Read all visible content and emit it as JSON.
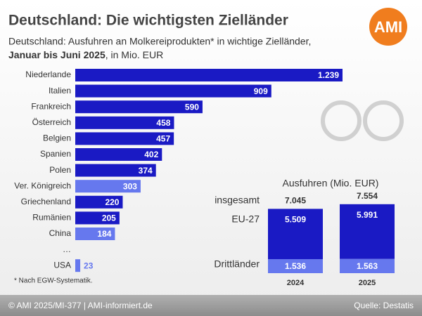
{
  "header": {
    "title": "Deutschland: Die wichtigsten Zielländer",
    "subtitle_line1": "Deutschland: Ausfuhren an Molkereiprodukten* in wichtige Zielländer,",
    "subtitle_bold": "Januar bis Juni 2025",
    "subtitle_rest": ", in Mio. EUR",
    "logo": "AMI"
  },
  "chart_data": [
    {
      "type": "bar",
      "orientation": "horizontal",
      "categories": [
        "Niederlande",
        "Italien",
        "Frankreich",
        "Österreich",
        "Belgien",
        "Spanien",
        "Polen",
        "Ver. Königreich",
        "Griechenland",
        "Rumänien",
        "China",
        "…",
        "USA"
      ],
      "values": [
        1239,
        909,
        590,
        458,
        457,
        402,
        374,
        303,
        220,
        205,
        184,
        null,
        23
      ],
      "value_labels": [
        "1.239",
        "909",
        "590",
        "458",
        "457",
        "402",
        "374",
        "303",
        "220",
        "205",
        "184",
        null,
        "23"
      ],
      "colors": [
        "#1a1ac4",
        "#1a1ac4",
        "#1a1ac4",
        "#1a1ac4",
        "#1a1ac4",
        "#1a1ac4",
        "#1a1ac4",
        "#6678ee",
        "#1a1ac4",
        "#1a1ac4",
        "#6678ee",
        null,
        "#6678ee"
      ]
    },
    {
      "type": "stacked_bar",
      "title": "Ausfuhren (Mio. EUR)",
      "categories": [
        "2024",
        "2025"
      ],
      "series": [
        {
          "name": "Drittländer",
          "color": "#6678ee",
          "values": [
            1536,
            1563
          ],
          "value_labels": [
            "1.536",
            "1.563"
          ]
        },
        {
          "name": "EU-27",
          "color": "#1a1ac4",
          "values": [
            5509,
            5991
          ],
          "value_labels": [
            "5.509",
            "5.991"
          ]
        }
      ],
      "totals": {
        "name": "insgesamt",
        "values": [
          7045,
          7554
        ],
        "value_labels": [
          "7.045",
          "7.554"
        ]
      }
    }
  ],
  "footnote": "* Nach EGW-Systematik.",
  "footer": {
    "left": "© AMI 2025/MI-377 | AMI-informiert.de",
    "right": "Quelle: Destatis"
  }
}
